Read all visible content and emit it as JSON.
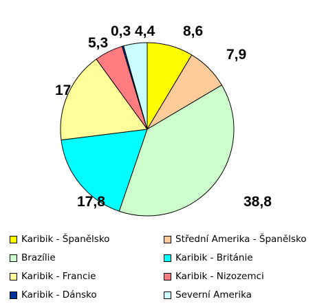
{
  "chart_data": {
    "type": "pie",
    "title": "",
    "slices": [
      {
        "label": "Karibik - Španělsko",
        "value": 8.6,
        "value_label": "8,6",
        "color": "#FFFF00"
      },
      {
        "label": "Střední Amerika - Španělsko",
        "value": 7.9,
        "value_label": "7,9",
        "color": "#FFCC99"
      },
      {
        "label": "Brazílie",
        "value": 38.8,
        "value_label": "38,8",
        "color": "#CCFFCC"
      },
      {
        "label": "Karibik - Británie",
        "value": 17.8,
        "value_label": "17,8",
        "color": "#00FFFF"
      },
      {
        "label": "Karibik - Francie",
        "value": 17,
        "value_label": "17",
        "color": "#FFFF99"
      },
      {
        "label": "Karibik - Nizozemci",
        "value": 5.3,
        "value_label": "5,3",
        "color": "#FF7C80"
      },
      {
        "label": "Karibik - Dánsko",
        "value": 0.3,
        "value_label": "0,3",
        "color": "#003399"
      },
      {
        "label": "Severní Amerika",
        "value": 4.4,
        "value_label": "4,4",
        "color": "#CCFFFF"
      }
    ],
    "legend_position": "bottom"
  }
}
